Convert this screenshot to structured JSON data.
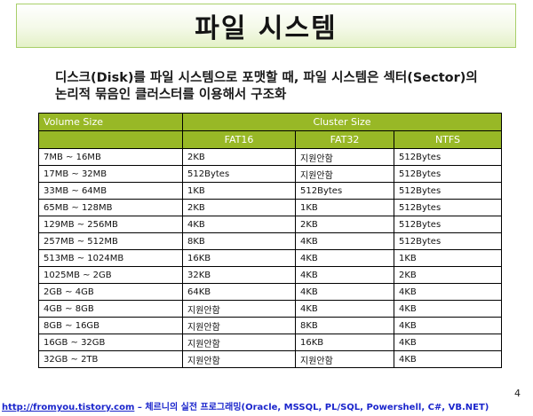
{
  "slide": {
    "title": "파일 시스템",
    "description_line1": "디스크(Disk)를 파일 시스템으로 포맷할 때, 파일 시스템은 섹터(Sector)의",
    "description_line2": "논리적 묶음인 클러스터를 이용해서 구조화",
    "page_number": "4"
  },
  "table": {
    "header_volume": "Volume Size",
    "header_cluster": "Cluster Size",
    "columns": [
      "FAT16",
      "FAT32",
      "NTFS"
    ],
    "rows": [
      [
        "7MB ~ 16MB",
        "2KB",
        "지원안함",
        "512Bytes"
      ],
      [
        "17MB ~ 32MB",
        "512Bytes",
        "지원안함",
        "512Bytes"
      ],
      [
        "33MB ~ 64MB",
        "1KB",
        "512Bytes",
        "512Bytes"
      ],
      [
        "65MB ~ 128MB",
        "2KB",
        "1KB",
        "512Bytes"
      ],
      [
        "129MB ~ 256MB",
        "4KB",
        "2KB",
        "512Bytes"
      ],
      [
        "257MB ~ 512MB",
        "8KB",
        "4KB",
        "512Bytes"
      ],
      [
        "513MB ~ 1024MB",
        "16KB",
        "4KB",
        "1KB"
      ],
      [
        "1025MB ~ 2GB",
        "32KB",
        "4KB",
        "2KB"
      ],
      [
        "2GB ~ 4GB",
        "64KB",
        "4KB",
        "4KB"
      ],
      [
        "4GB ~ 8GB",
        "지원안함",
        "4KB",
        "4KB"
      ],
      [
        "8GB ~ 16GB",
        "지원안함",
        "8KB",
        "4KB"
      ],
      [
        "16GB ~ 32GB",
        "지원안함",
        "16KB",
        "4KB"
      ],
      [
        "32GB ~ 2TB",
        "지원안함",
        "지원안함",
        "4KB"
      ]
    ]
  },
  "footer": {
    "url": "http://fromyou.tistory.com",
    "text": " – 체르니의 실전 프로그래밍(Oracle, MSSQL, PL/SQL, Powershell, C#, VB.NET)"
  },
  "colors": {
    "header_bg": "#98b826",
    "title_border": "#a8cf6a",
    "link": "#1a25cc"
  }
}
